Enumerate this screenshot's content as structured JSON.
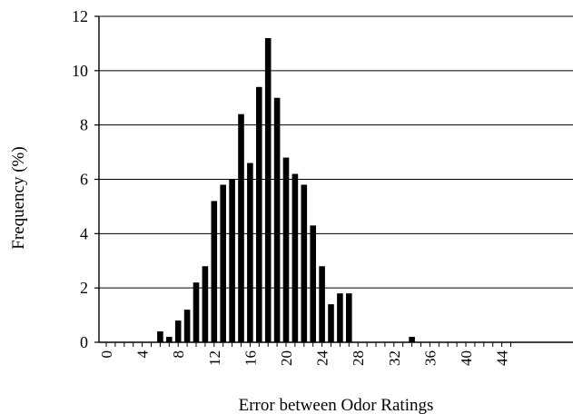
{
  "chart_data": {
    "type": "bar",
    "title": "",
    "xlabel": "Error between Odor Ratings",
    "ylabel": "Frequency (%)",
    "xlim": [
      0,
      45
    ],
    "ylim": [
      0,
      12
    ],
    "y_ticks": [
      0,
      2,
      4,
      6,
      8,
      10,
      12
    ],
    "x_ticks": [
      0,
      4,
      8,
      12,
      16,
      20,
      24,
      28,
      32,
      36,
      40,
      44
    ],
    "grid": "horizontal",
    "legend": "none",
    "colors": {
      "bars": "#000000",
      "grid": "#000000",
      "background": "#ffffff"
    },
    "x": [
      0,
      1,
      2,
      3,
      4,
      5,
      6,
      7,
      8,
      9,
      10,
      11,
      12,
      13,
      14,
      15,
      16,
      17,
      18,
      19,
      20,
      21,
      22,
      23,
      24,
      25,
      26,
      27,
      28,
      29,
      30,
      31,
      32,
      33,
      34,
      35,
      36,
      37,
      38,
      39,
      40,
      41,
      42,
      43,
      44
    ],
    "values": [
      0,
      0,
      0,
      0,
      0,
      0,
      0.4,
      0.2,
      0.8,
      1.2,
      2.2,
      2.8,
      5.2,
      5.8,
      6.0,
      8.4,
      6.6,
      9.4,
      11.2,
      9.0,
      6.8,
      6.2,
      5.8,
      4.3,
      2.8,
      1.4,
      1.8,
      1.8,
      0,
      0,
      0,
      0,
      0,
      0,
      0.2,
      0,
      0,
      0,
      0,
      0,
      0,
      0,
      0,
      0,
      0
    ]
  }
}
